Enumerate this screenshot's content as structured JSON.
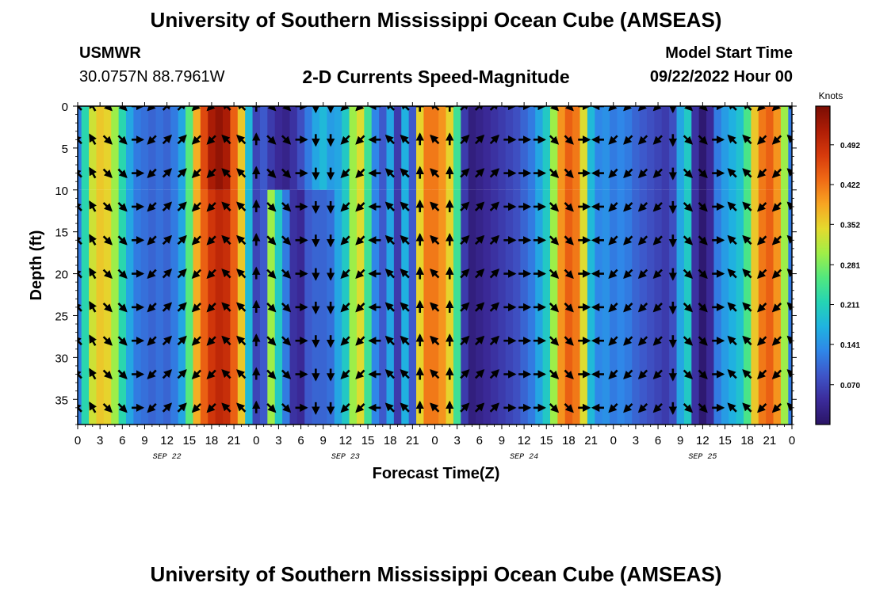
{
  "header": {
    "title": "University of Southern Mississippi Ocean Cube (AMSEAS)",
    "station": "USMWR",
    "coords": "30.0757N  88.7961W",
    "subtitle": "2-D Currents Speed-Magnitude",
    "model_start_label": "Model Start Time",
    "model_start_value": "09/22/2022 Hour 00"
  },
  "footer": {
    "title": "University of Southern Mississippi Ocean Cube (AMSEAS)"
  },
  "colors": {
    "palette": [
      "#2a1465",
      "#3b2b9a",
      "#3e55c8",
      "#2f86e8",
      "#1fb3e0",
      "#25d4b4",
      "#52e87e",
      "#a0ee47",
      "#e4da2e",
      "#f7a522",
      "#ef6a15",
      "#d63a0c",
      "#ae1d06",
      "#7a0d04"
    ]
  },
  "chart_data": {
    "type": "heatmap",
    "title": "2-D Currents Speed-Magnitude",
    "xlabel": "Forecast Time(Z)",
    "ylabel": "Depth (ft)",
    "xlim": [
      0,
      96
    ],
    "ylim": [
      0,
      38
    ],
    "x_ticks": [
      0,
      3,
      6,
      9,
      12,
      15,
      18,
      21,
      24,
      27,
      30,
      33,
      36,
      39,
      42,
      45,
      48,
      51,
      54,
      57,
      60,
      63,
      66,
      69,
      72,
      75,
      78,
      81,
      84,
      87,
      90,
      93,
      96
    ],
    "x_tick_labels": [
      "0",
      "3",
      "6",
      "9",
      "12",
      "15",
      "18",
      "21",
      "0",
      "3",
      "6",
      "9",
      "12",
      "15",
      "18",
      "21",
      "0",
      "3",
      "6",
      "9",
      "12",
      "15",
      "18",
      "21",
      "0",
      "3",
      "6",
      "9",
      "12",
      "15",
      "18",
      "21",
      "0"
    ],
    "y_ticks": [
      0,
      5,
      10,
      15,
      20,
      25,
      30,
      35
    ],
    "y_tick_labels": [
      "0",
      "5",
      "10",
      "15",
      "20",
      "25",
      "30",
      "35"
    ],
    "date_labels": [
      {
        "text": "SEP 22",
        "hour": 12
      },
      {
        "text": "SEP 23",
        "hour": 36
      },
      {
        "text": "SEP 24",
        "hour": 60
      },
      {
        "text": "SEP 25",
        "hour": 84
      }
    ],
    "colorbar": {
      "units": "Knots",
      "min": 0.0,
      "max": 0.56,
      "tick_values": [
        0.492,
        0.422,
        0.352,
        0.281,
        0.211,
        0.141,
        0.07
      ],
      "tick_labels": [
        "0.492",
        "0.422",
        "0.352",
        "0.281",
        "0.211",
        "0.141",
        "0.070"
      ]
    },
    "speed_profile_hours": [
      0,
      1,
      2,
      3,
      4,
      5,
      6,
      7,
      8,
      9,
      10,
      11,
      12,
      13,
      14,
      15,
      16,
      17,
      18,
      19,
      20,
      21,
      22,
      23,
      24,
      25,
      26,
      27,
      28,
      29,
      30,
      31,
      32,
      33,
      34,
      35,
      36,
      37,
      38,
      39,
      40,
      41,
      42,
      43,
      44,
      45,
      46,
      47,
      48,
      49,
      50,
      51,
      52,
      53,
      54,
      55,
      56,
      57,
      58,
      59,
      60,
      61,
      62,
      63,
      64,
      65,
      66,
      67,
      68,
      69,
      70,
      71,
      72,
      73,
      74,
      75,
      76,
      77,
      78,
      79,
      80,
      81,
      82,
      83,
      84,
      85,
      86,
      87,
      88,
      89,
      90,
      91,
      92,
      93,
      94,
      95,
      96
    ],
    "speed_profile_knots": [
      0.12,
      0.22,
      0.33,
      0.36,
      0.35,
      0.3,
      0.22,
      0.16,
      0.12,
      0.11,
      0.1,
      0.11,
      0.1,
      0.12,
      0.16,
      0.26,
      0.38,
      0.44,
      0.48,
      0.5,
      0.49,
      0.44,
      0.36,
      0.18,
      0.07,
      0.09,
      0.3,
      0.2,
      0.12,
      0.05,
      0.04,
      0.09,
      0.1,
      0.1,
      0.11,
      0.16,
      0.2,
      0.3,
      0.34,
      0.24,
      0.13,
      0.09,
      0.16,
      0.06,
      0.17,
      0.09,
      0.35,
      0.42,
      0.42,
      0.4,
      0.35,
      0.24,
      0.06,
      0.02,
      0.03,
      0.04,
      0.05,
      0.06,
      0.07,
      0.08,
      0.1,
      0.12,
      0.16,
      0.2,
      0.3,
      0.4,
      0.44,
      0.42,
      0.34,
      0.18,
      0.13,
      0.14,
      0.12,
      0.13,
      0.12,
      0.1,
      0.09,
      0.08,
      0.07,
      0.06,
      0.08,
      0.16,
      0.2,
      0.05,
      0.01,
      0.04,
      0.12,
      0.15,
      0.17,
      0.19,
      0.25,
      0.36,
      0.42,
      0.44,
      0.4,
      0.3,
      0.12
    ],
    "upper_layer_speed_profile_knots": [
      0.12,
      0.22,
      0.33,
      0.36,
      0.35,
      0.3,
      0.22,
      0.16,
      0.12,
      0.11,
      0.1,
      0.11,
      0.1,
      0.12,
      0.16,
      0.26,
      0.38,
      0.46,
      0.52,
      0.54,
      0.52,
      0.44,
      0.36,
      0.18,
      0.07,
      0.09,
      0.06,
      0.04,
      0.03,
      0.05,
      0.08,
      0.12,
      0.16,
      0.18,
      0.15,
      0.16,
      0.2,
      0.3,
      0.34,
      0.24,
      0.13,
      0.09,
      0.16,
      0.06,
      0.17,
      0.09,
      0.35,
      0.42,
      0.42,
      0.4,
      0.35,
      0.24,
      0.06,
      0.02,
      0.03,
      0.04,
      0.05,
      0.06,
      0.07,
      0.08,
      0.1,
      0.12,
      0.16,
      0.2,
      0.3,
      0.4,
      0.44,
      0.42,
      0.34,
      0.18,
      0.13,
      0.14,
      0.12,
      0.13,
      0.12,
      0.1,
      0.09,
      0.08,
      0.07,
      0.06,
      0.08,
      0.16,
      0.2,
      0.05,
      0.01,
      0.04,
      0.12,
      0.15,
      0.17,
      0.19,
      0.25,
      0.36,
      0.42,
      0.44,
      0.4,
      0.3,
      0.12
    ],
    "upper_layer_depth_ft": 10,
    "vector_depths_ft": [
      0,
      4,
      8,
      12,
      16,
      20,
      24,
      28,
      32,
      36
    ],
    "vector_hours": [
      0,
      2,
      4,
      6,
      8,
      10,
      12,
      14,
      16,
      18,
      20,
      22,
      24,
      26,
      28,
      30,
      32,
      34,
      36,
      38,
      40,
      42,
      44,
      46,
      48,
      50,
      52,
      54,
      56,
      58,
      60,
      62,
      64,
      66,
      68,
      70,
      72,
      74,
      76,
      78,
      80,
      82,
      84,
      86,
      88,
      90,
      92,
      94,
      96
    ],
    "vector_directions_deg": [
      135,
      120,
      315,
      315,
      0,
      225,
      45,
      45,
      225,
      225,
      135,
      135,
      90,
      315,
      315,
      0,
      270,
      270,
      225,
      225,
      180,
      135,
      135,
      90,
      135,
      90,
      45,
      45,
      45,
      0,
      0,
      0,
      315,
      315,
      0,
      180,
      225,
      225,
      225,
      225,
      270,
      315,
      315,
      0,
      135,
      135,
      225,
      225,
      135
    ]
  }
}
